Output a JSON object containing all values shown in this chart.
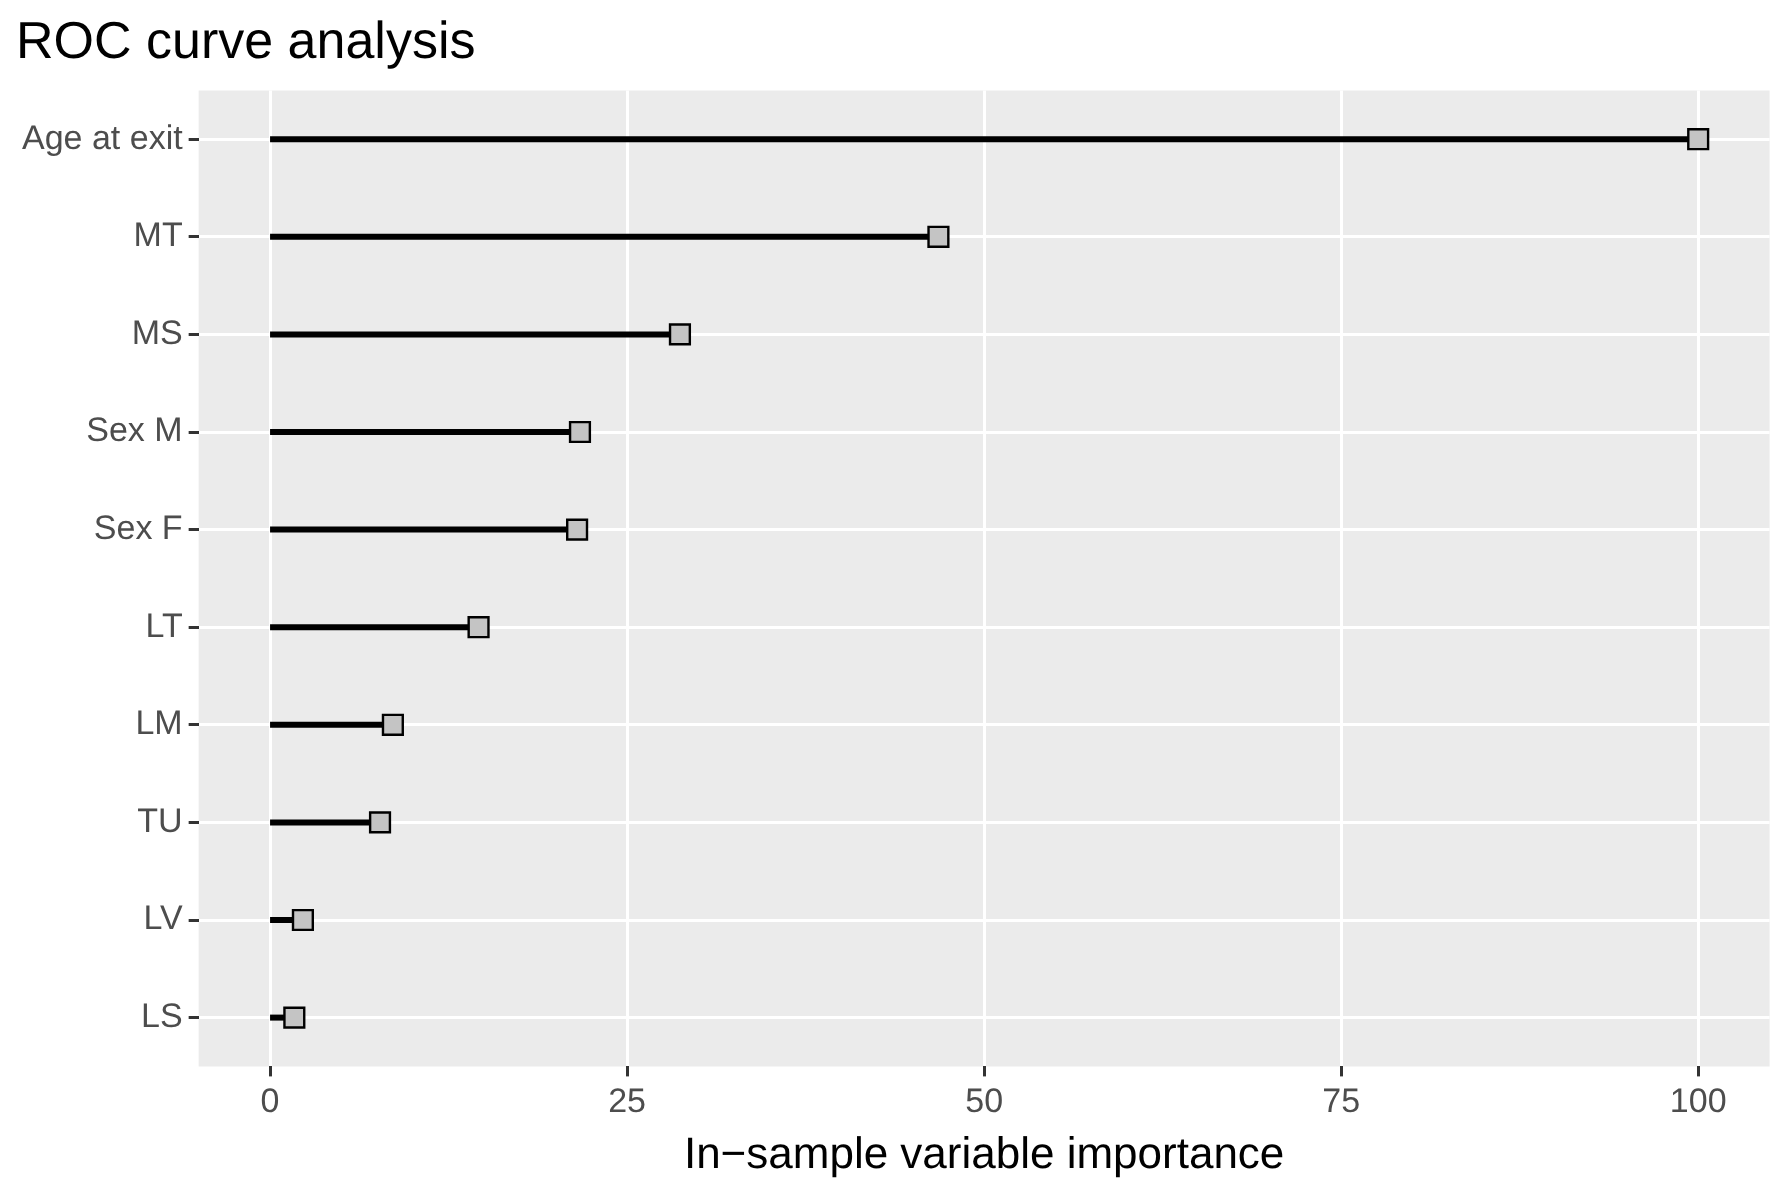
{
  "chart_data": {
    "type": "lollipop",
    "title": "ROC curve analysis",
    "xlabel": "In−sample variable importance",
    "orientation": "horizontal",
    "categories": [
      "Age at exit",
      "MT",
      "MS",
      "Sex M",
      "Sex F",
      "LT",
      "LM",
      "TU",
      "LV",
      "LS"
    ],
    "series": [
      {
        "color": "#000000",
        "values": [
          100,
          46.8,
          28.7,
          21.7,
          21.5,
          14.6,
          8.6,
          7.7,
          2.3,
          1.7
        ]
      }
    ],
    "xlim": [
      -5,
      105
    ],
    "xticks": [
      0,
      25,
      50,
      75,
      100
    ],
    "grid": true,
    "legend": false,
    "marker": "square"
  }
}
